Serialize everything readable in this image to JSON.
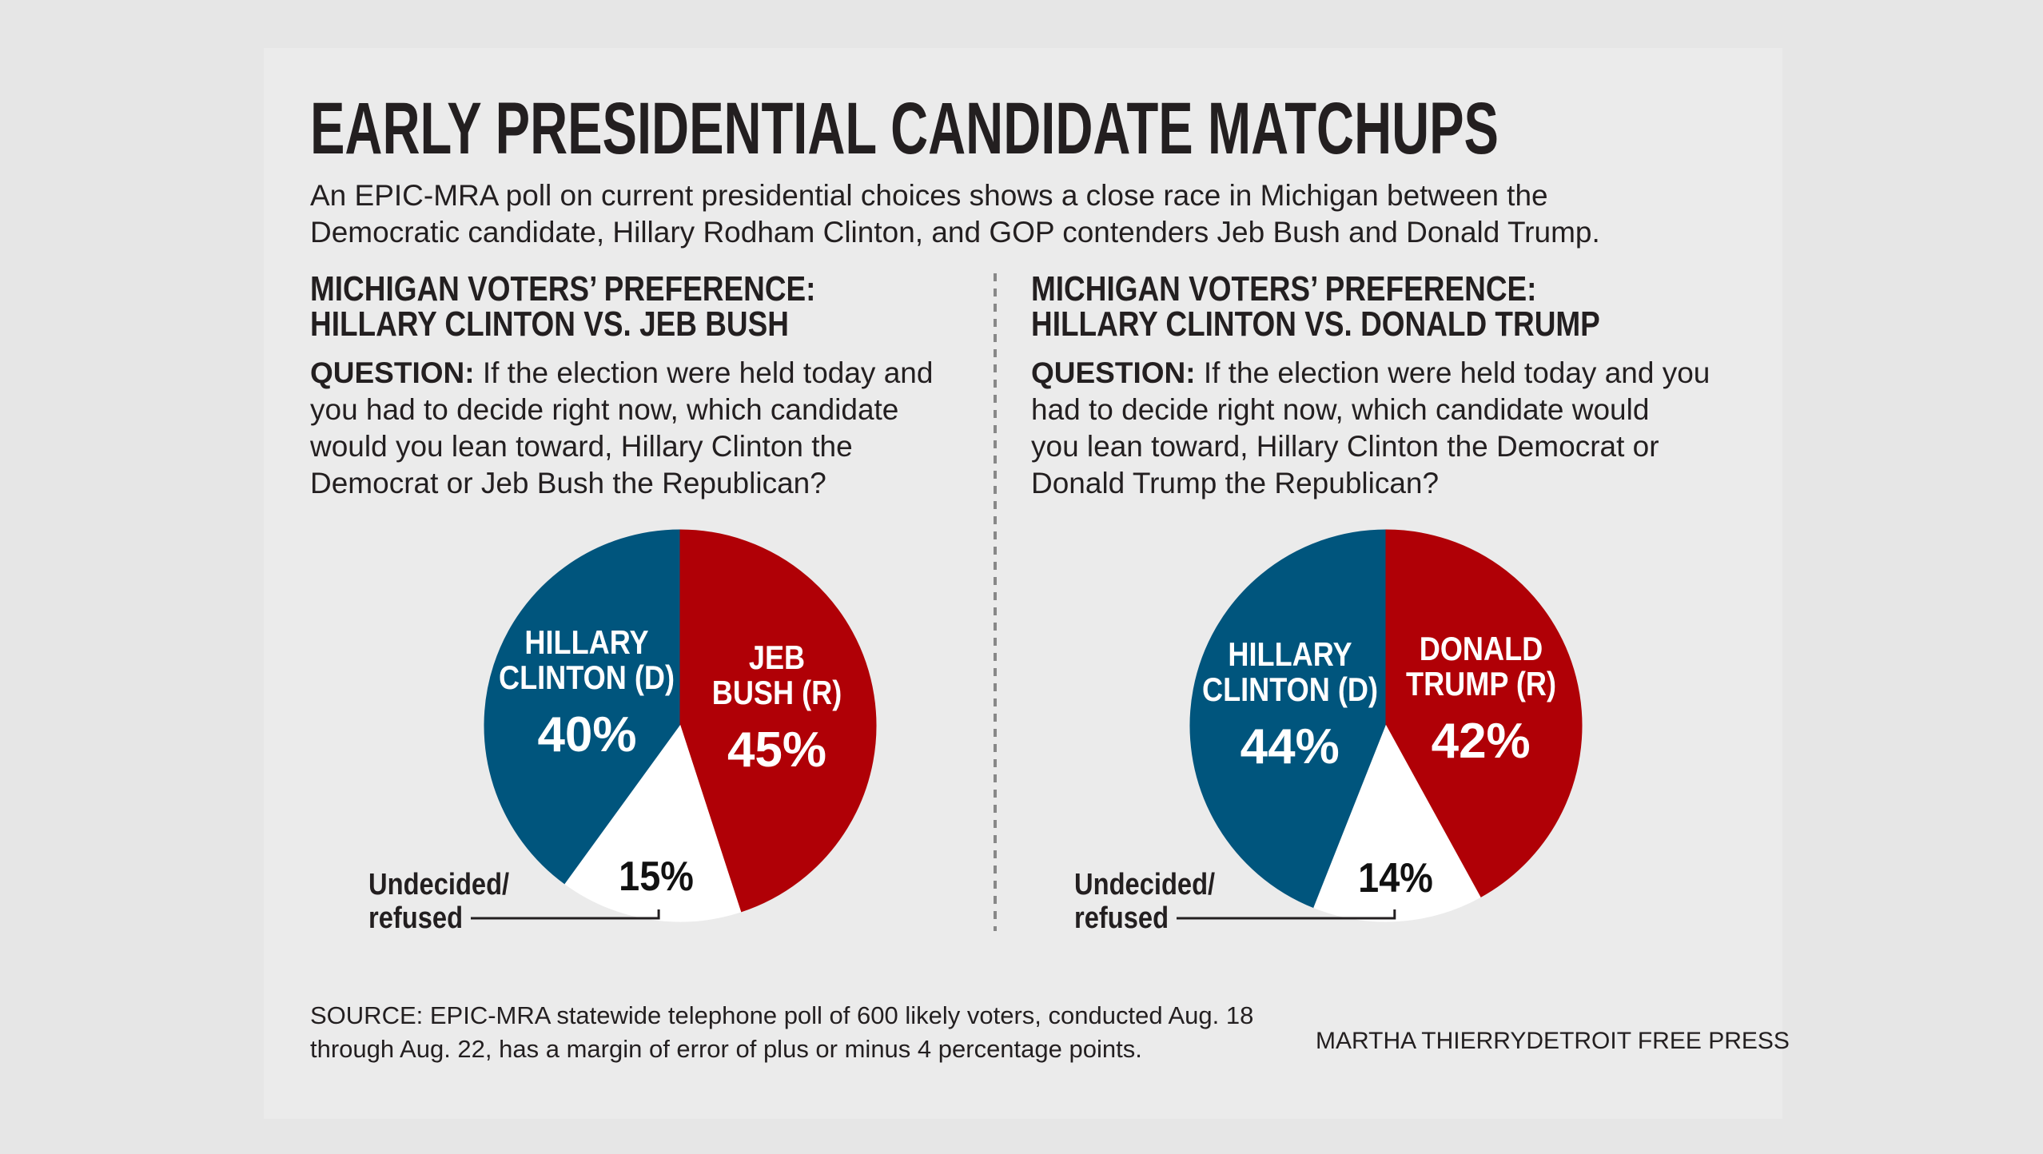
{
  "title": "EARLY PRESIDENTIAL CANDIDATE MATCHUPS",
  "subtitle": "An EPIC-MRA poll on current presidential choices shows a close race in Michigan between the\nDemocratic candidate, Hillary Rodham Clinton, and GOP contenders Jeb Bush and Donald Trump.",
  "chart_data": [
    {
      "type": "pie",
      "title": "MICHIGAN VOTERS’ PREFERENCE:\nHILLARY CLINTON VS. JEB BUSH",
      "question_label": "QUESTION:",
      "question": "If the election were held today and\nyou had to decide right now, which candidate\nwould you lean toward, Hillary Clinton the\nDemocrat or Jeb Bush the Republican?",
      "categories": [
        "HILLARY\nCLINTON (D)",
        "JEB\nBUSH (R)",
        "Undecided/\nrefused"
      ],
      "values": [
        40,
        45,
        15
      ],
      "value_labels": [
        "40%",
        "45%",
        "15%"
      ],
      "colors": [
        "#00557d",
        "#b00006",
        "#ffffff"
      ],
      "label_colors": [
        "#ffffff",
        "#ffffff",
        "#111111"
      ]
    },
    {
      "type": "pie",
      "title": "MICHIGAN VOTERS’ PREFERENCE:\nHILLARY CLINTON VS. DONALD TRUMP",
      "question_label": "QUESTION:",
      "question": "If the election were held today and you\nhad to decide right now, which candidate would\nyou lean toward, Hillary Clinton the Democrat or\nDonald Trump the Republican?",
      "categories": [
        "HILLARY\nCLINTON (D)",
        "DONALD\nTRUMP (R)",
        "Undecided/\nrefused"
      ],
      "values": [
        44,
        42,
        14
      ],
      "value_labels": [
        "44%",
        "42%",
        "14%"
      ],
      "colors": [
        "#00557d",
        "#b00006",
        "#ffffff"
      ],
      "label_colors": [
        "#ffffff",
        "#ffffff",
        "#111111"
      ]
    }
  ],
  "source": "SOURCE: EPIC-MRA statewide telephone poll of 600 likely voters, conducted Aug. 18\nthrough Aug. 22, has a margin of error of plus or minus 4 percentage points.",
  "credit": "MARTHA THIERRYDETROIT FREE PRESS"
}
